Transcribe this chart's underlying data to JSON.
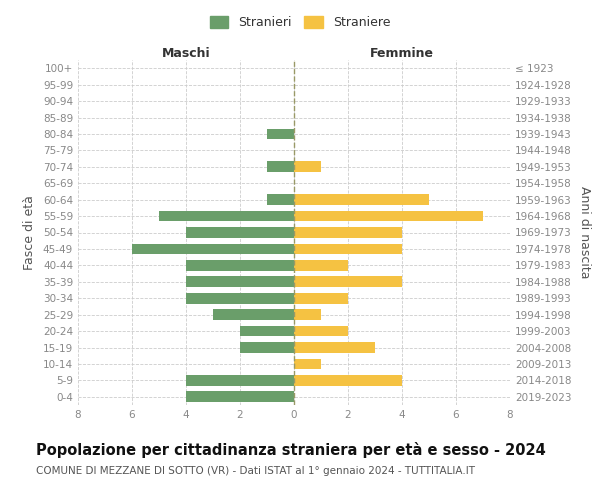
{
  "age_groups": [
    "0-4",
    "5-9",
    "10-14",
    "15-19",
    "20-24",
    "25-29",
    "30-34",
    "35-39",
    "40-44",
    "45-49",
    "50-54",
    "55-59",
    "60-64",
    "65-69",
    "70-74",
    "75-79",
    "80-84",
    "85-89",
    "90-94",
    "95-99",
    "100+"
  ],
  "birth_years": [
    "2019-2023",
    "2014-2018",
    "2009-2013",
    "2004-2008",
    "1999-2003",
    "1994-1998",
    "1989-1993",
    "1984-1988",
    "1979-1983",
    "1974-1978",
    "1969-1973",
    "1964-1968",
    "1959-1963",
    "1954-1958",
    "1949-1953",
    "1944-1948",
    "1939-1943",
    "1934-1938",
    "1929-1933",
    "1924-1928",
    "≤ 1923"
  ],
  "stranieri": [
    4,
    4,
    0,
    2,
    2,
    3,
    4,
    4,
    4,
    6,
    4,
    5,
    1,
    0,
    1,
    0,
    1,
    0,
    0,
    0,
    0
  ],
  "straniere": [
    0,
    4,
    1,
    3,
    2,
    1,
    2,
    4,
    2,
    4,
    4,
    7,
    5,
    0,
    1,
    0,
    0,
    0,
    0,
    0,
    0
  ],
  "male_color": "#6a9e6a",
  "female_color": "#f5c242",
  "xlim": 8,
  "title": "Popolazione per cittadinanza straniera per età e sesso - 2024",
  "subtitle": "COMUNE DI MEZZANE DI SOTTO (VR) - Dati ISTAT al 1° gennaio 2024 - TUTTITALIA.IT",
  "xlabel_left": "Maschi",
  "xlabel_right": "Femmine",
  "ylabel_left": "Fasce di età",
  "ylabel_right": "Anni di nascita",
  "legend_stranieri": "Stranieri",
  "legend_straniere": "Straniere",
  "background_color": "#ffffff",
  "grid_color": "#cccccc",
  "center_line_color": "#999966",
  "tick_color": "#888888",
  "title_fontsize": 10.5,
  "subtitle_fontsize": 7.5,
  "axis_label_fontsize": 9,
  "tick_fontsize": 7.5,
  "legend_fontsize": 9,
  "bar_height": 0.65
}
